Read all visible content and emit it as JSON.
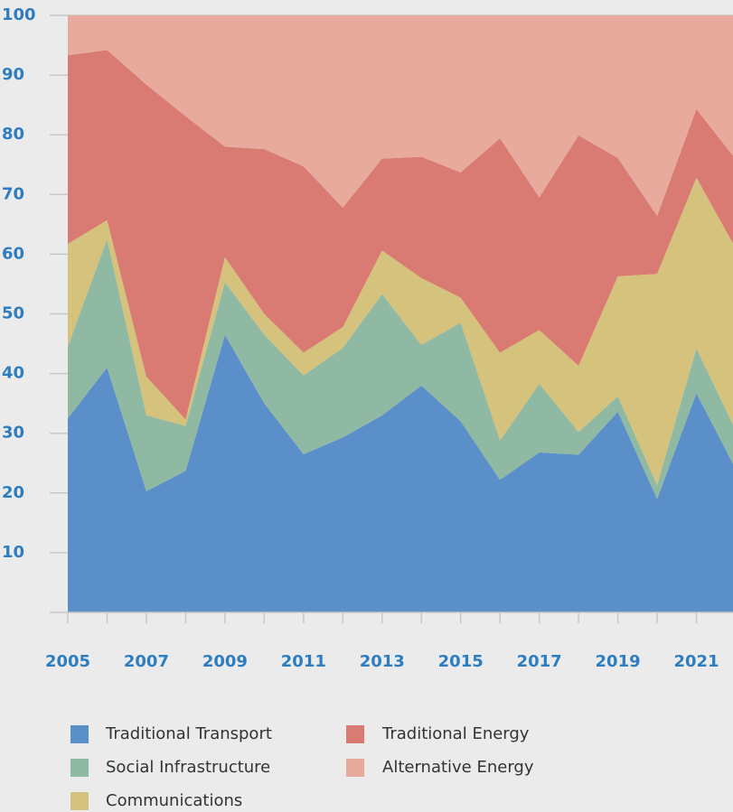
{
  "chart_data": {
    "type": "stacked-area",
    "x": [
      2005,
      2006,
      2007,
      2008,
      2009,
      2010,
      2011,
      2012,
      2013,
      2014,
      2015,
      2016,
      2017,
      2018,
      2019,
      2020,
      2021,
      2022
    ],
    "series": [
      {
        "name": "Traditional Transport",
        "color": "#5b8fc9",
        "values": [
          32.5,
          41,
          20.3,
          23.7,
          46.5,
          35,
          26.5,
          29.3,
          33,
          38,
          32,
          22.2,
          26.8,
          26.4,
          33.6,
          19,
          36.7,
          24
        ]
      },
      {
        "name": "Social Infrastructure",
        "color": "#90b9a3",
        "values": [
          12,
          21.5,
          12.7,
          7.5,
          8.8,
          11.5,
          13.2,
          15,
          20.3,
          6.8,
          16.5,
          6.6,
          11.5,
          3.8,
          2.6,
          2.3,
          7.5,
          6.5
        ]
      },
      {
        "name": "Communications",
        "color": "#d5c27c",
        "values": [
          17.2,
          3.2,
          6.5,
          1.1,
          4.2,
          3.5,
          3.8,
          3.5,
          7.3,
          11.2,
          4.2,
          14.7,
          9,
          11.1,
          20.1,
          35.4,
          28.6,
          30.5
        ]
      },
      {
        "name": "Traditional Energy",
        "color": "#d97b72",
        "values": [
          31.6,
          28.5,
          48.9,
          50.8,
          18.5,
          27.6,
          31.2,
          20,
          15.4,
          20.3,
          21,
          35.9,
          22.2,
          38.6,
          19.8,
          9.7,
          11.5,
          14.9
        ]
      },
      {
        "name": "Alternative Energy",
        "color": "#e8aa9c",
        "values": [
          6.7,
          5.8,
          11.6,
          16.9,
          22,
          22.4,
          25.3,
          32.2,
          24,
          23.7,
          26.3,
          20.6,
          30.5,
          20.1,
          23.9,
          33.6,
          15.7,
          24.1
        ]
      }
    ],
    "xlim": [
      2005,
      2022
    ],
    "xticks": [
      2005,
      2007,
      2009,
      2011,
      2013,
      2015,
      2017,
      2019,
      2021
    ],
    "ylim": [
      0,
      100
    ],
    "yticks": [
      10,
      20,
      30,
      40,
      50,
      60,
      70,
      80,
      90,
      100
    ],
    "legend": "bottom"
  }
}
